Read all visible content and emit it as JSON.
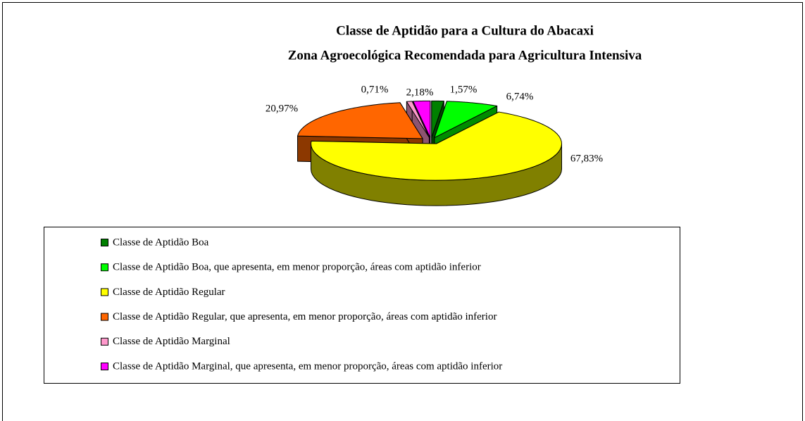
{
  "chart_data": {
    "type": "pie",
    "title": "Classe de Aptidão para a Cultura do Abacaxi",
    "subtitle": "Zona Agroecológica Recomendada para Agricultura Intensiva",
    "series": [
      {
        "name": "Classe de Aptidão",
        "categories": [
          "Classe de Aptidão Boa",
          "Classe de Aptidão Boa, que apresenta, em menor proporção, áreas com aptidão inferior",
          "Classe de Aptidão Regular",
          "Classe de Aptidão Regular, que apresenta, em menor proporção, áreas com aptidão inferior",
          "Classe de Aptidão Marginal",
          "Classe de Aptidão Marginal, que apresenta, em menor proporção, áreas com aptidão inferior"
        ],
        "values": [
          1.57,
          6.74,
          67.83,
          20.97,
          0.71,
          2.18
        ],
        "value_labels": [
          "1,57%",
          "6,74%",
          "67,83%",
          "20,97%",
          "0,71%",
          "2,18%"
        ],
        "colors": [
          "#008000",
          "#00ff00",
          "#ffff00",
          "#ff6600",
          "#ff99cc",
          "#ff00ff"
        ]
      }
    ],
    "legend": "bottom"
  }
}
